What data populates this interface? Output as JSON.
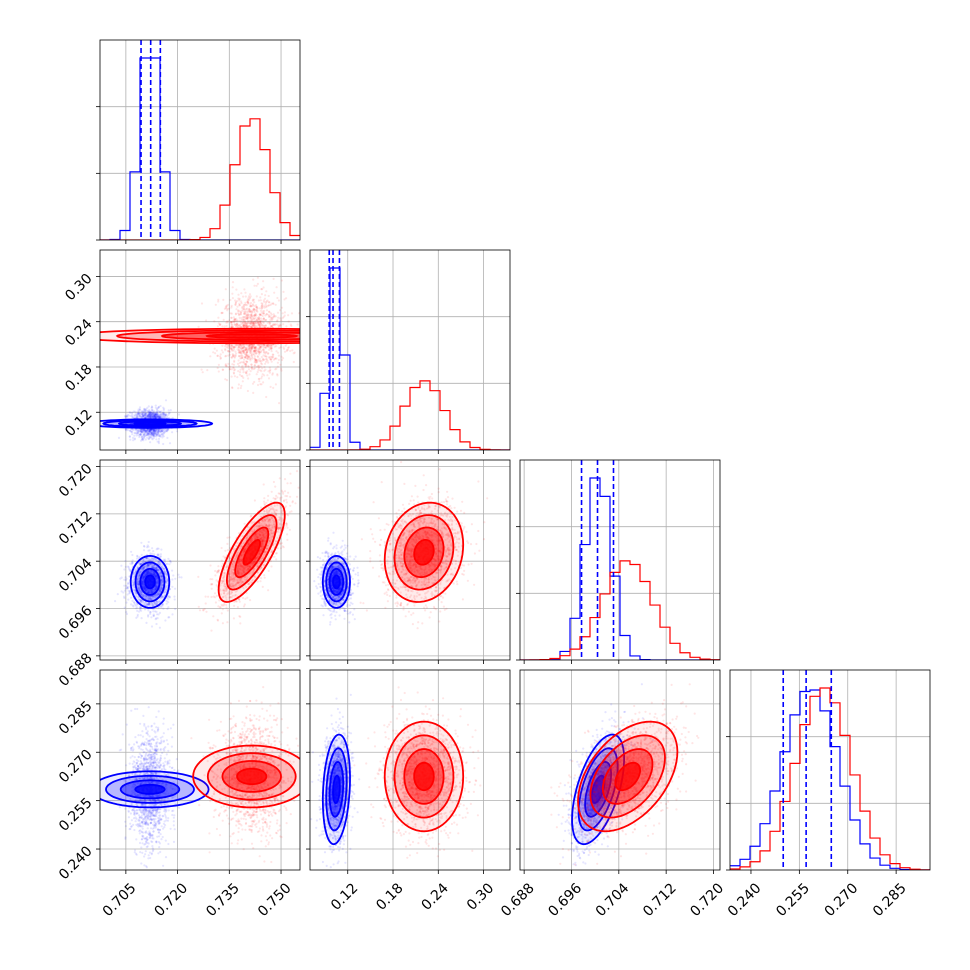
{
  "chart_data": {
    "type": "corner",
    "title": "",
    "parameters": [
      {
        "index": 0,
        "ticks": [
          0.705,
          0.72,
          0.735,
          0.75
        ],
        "tick_labels": [
          "0.705",
          "0.720",
          "0.735",
          "0.750"
        ],
        "range": [
          0.6975,
          0.7555
        ]
      },
      {
        "index": 1,
        "ticks": [
          0.12,
          0.18,
          0.24,
          0.3
        ],
        "tick_labels": [
          "0.12",
          "0.18",
          "0.24",
          "0.30"
        ],
        "range": [
          0.07,
          0.335
        ]
      },
      {
        "index": 2,
        "ticks": [
          0.688,
          0.696,
          0.704,
          0.712,
          0.72
        ],
        "tick_labels": [
          "0.688",
          "0.696",
          "0.704",
          "0.712",
          "0.720"
        ],
        "range": [
          0.6873,
          0.7211
        ]
      },
      {
        "index": 3,
        "ticks": [
          0.24,
          0.255,
          0.27,
          0.285
        ],
        "tick_labels": [
          "0.240",
          "0.255",
          "0.270",
          "0.285"
        ],
        "range": [
          0.2335,
          0.2955
        ]
      }
    ],
    "series": [
      {
        "color": "#0000ff",
        "mean": [
          0.712,
          0.105,
          0.7005,
          0.2585
        ],
        "std": [
          0.0028,
          0.009,
          0.0022,
          0.0085
        ],
        "corr": [
          [
            1,
            0,
            0,
            0
          ],
          [
            0,
            1,
            0,
            0.2
          ],
          [
            0,
            0,
            1,
            0.55
          ],
          [
            0,
            0.2,
            0.55,
            1
          ]
        ],
        "quantiles": [
          [
            0.7094,
            0.7122,
            0.715
          ],
          [
            0.0955,
            0.1005,
            0.109
          ],
          [
            0.6977,
            0.7004,
            0.7031
          ],
          [
            0.25,
            0.2571,
            0.2649
          ]
        ]
      },
      {
        "color": "#ff0000",
        "mean": [
          0.7415,
          0.221,
          0.7055,
          0.2625
        ],
        "std": [
          0.0048,
          0.026,
          0.0042,
          0.0085
        ],
        "corr": [
          [
            1,
            0,
            0.75,
            0
          ],
          [
            0,
            1,
            0.15,
            0
          ],
          [
            0.75,
            0.15,
            1,
            0.45
          ],
          [
            0,
            0,
            0.45,
            1
          ]
        ]
      }
    ],
    "quantile_lines_color": "#0000ff",
    "contour_sigmas": [
      0.5,
      1.0,
      1.5,
      2.0
    ],
    "grid": true
  }
}
